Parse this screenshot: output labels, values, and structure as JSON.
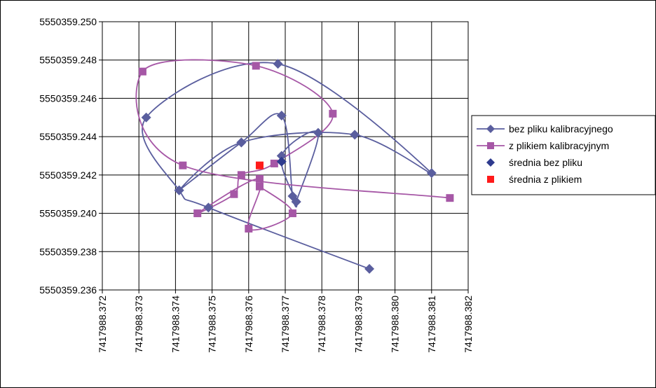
{
  "chart_data": {
    "type": "scatter",
    "title": "",
    "xlabel": "",
    "ylabel": "",
    "xlim": [
      7417988.372,
      7417988.382
    ],
    "ylim": [
      5550359.236,
      5550359.25
    ],
    "x_ticks": [
      "7417988.372",
      "7417988.373",
      "7417988.374",
      "7417988.375",
      "7417988.376",
      "7417988.377",
      "7417988.378",
      "7417988.379",
      "7417988.380",
      "7417988.381",
      "7417988.382"
    ],
    "y_ticks": [
      "5550359.250",
      "5550359.248",
      "5550359.246",
      "5550359.244",
      "5550359.242",
      "5550359.240",
      "5550359.238",
      "5550359.236"
    ],
    "grid": true,
    "legend_position": "right",
    "series": [
      {
        "name": "bez pliku kalibracyjnego",
        "color": "#5A5E9E",
        "marker": "diamond",
        "smooth_line": true,
        "x": [
          7417988.3793,
          7417988.3749,
          7417988.3741,
          7417988.3732,
          7417988.3768,
          7417988.381,
          7417988.3789,
          7417988.3758,
          7417988.3741,
          7417988.3758,
          7417988.3769,
          7417988.3772,
          7417988.3773,
          7417988.3769,
          7417988.3779,
          7417988.3773
        ],
        "y": [
          5550359.2371,
          5550359.2403,
          5550359.2412,
          5550359.245,
          5550359.2478,
          5550359.2421,
          5550359.2441,
          5550359.2437,
          5550359.2412,
          5550359.2437,
          5550359.2451,
          5550359.2409,
          5550359.2406,
          5550359.243,
          5550359.2442,
          5550359.2406
        ]
      },
      {
        "name": "z plikiem kalibracyjnym",
        "color": "#A657A6",
        "marker": "square",
        "smooth_line": true,
        "x": [
          7417988.3815,
          7417988.3742,
          7417988.3731,
          7417988.3762,
          7417988.3783,
          7417988.3767,
          7417988.3758,
          7417988.3756,
          7417988.3746,
          7417988.3763,
          7417988.376,
          7417988.3772,
          7417988.3763
        ],
        "y": [
          5550359.2408,
          5550359.2425,
          5550359.2474,
          5550359.2477,
          5550359.2452,
          5550359.2426,
          5550359.242,
          5550359.241,
          5550359.24,
          5550359.2418,
          5550359.2392,
          5550359.24,
          5550359.2414
        ]
      },
      {
        "name": "średnia bez pliku",
        "color": "#2E3B8E",
        "marker": "diamond",
        "smooth_line": false,
        "x": [
          7417988.3769
        ],
        "y": [
          5550359.2427
        ]
      },
      {
        "name": "średnia z plikiem",
        "color": "#FF1A1A",
        "marker": "square",
        "smooth_line": false,
        "x": [
          7417988.3763
        ],
        "y": [
          5550359.2425
        ]
      }
    ]
  }
}
